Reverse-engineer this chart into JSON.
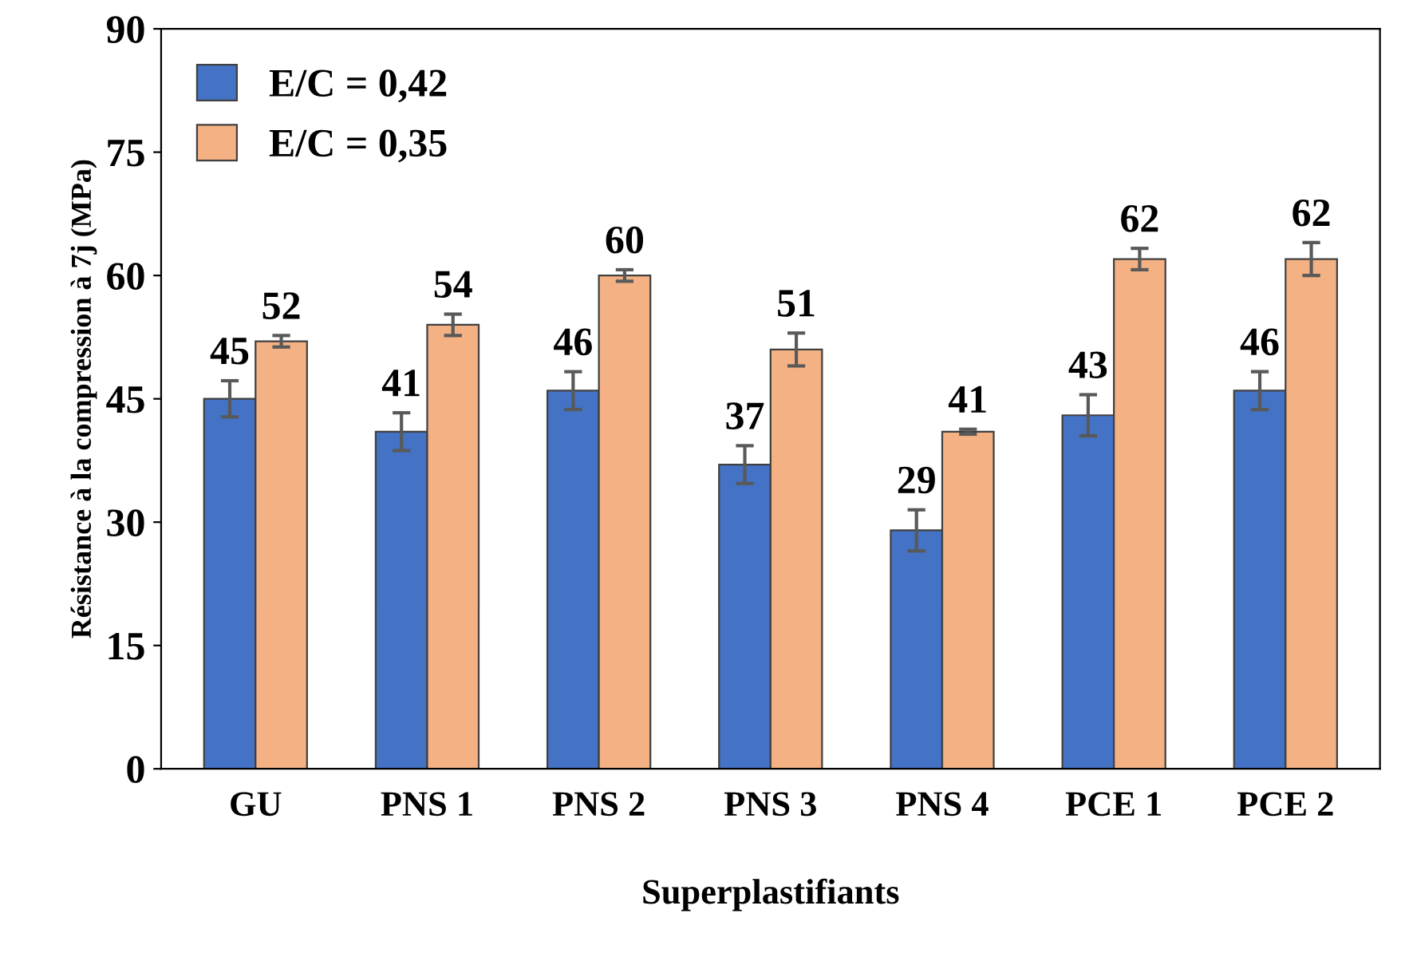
{
  "chart_data": {
    "type": "bar",
    "xlabel": "Superplastifiants",
    "ylabel": "Résistance à la compression à 7j (MPa)",
    "categories": [
      "GU",
      "PNS 1",
      "PNS 2",
      "PNS 3",
      "PNS 4",
      "PCE 1",
      "PCE 2"
    ],
    "series": [
      {
        "name": "E/C = 0,42",
        "color": "#4472c4",
        "values": [
          45,
          41,
          46,
          37,
          29,
          43,
          46
        ],
        "errors": [
          2.2,
          2.3,
          2.3,
          2.3,
          2.5,
          2.5,
          2.3
        ]
      },
      {
        "name": "E/C = 0,35",
        "color": "#f4b183",
        "values": [
          52,
          54,
          60,
          51,
          41,
          62,
          62
        ],
        "errors": [
          0.7,
          1.3,
          0.7,
          2,
          0.3,
          1.3,
          2
        ]
      }
    ],
    "ylim": [
      0,
      90
    ],
    "yticks": [
      0,
      15,
      30,
      45,
      60,
      75,
      90
    ],
    "grid": false,
    "legend": "top left",
    "data_labels": true
  }
}
